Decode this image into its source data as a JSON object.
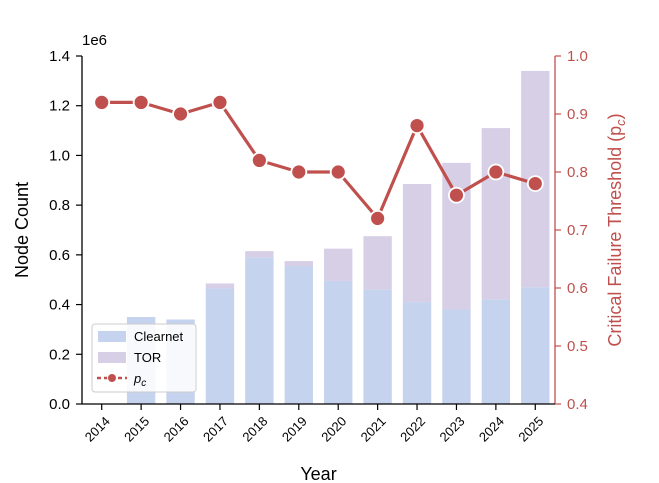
{
  "chart_data": {
    "type": "bar+line",
    "categories": [
      "2014",
      "2015",
      "2016",
      "2017",
      "2018",
      "2019",
      "2020",
      "2021",
      "2022",
      "2023",
      "2024",
      "2025"
    ],
    "series": [
      {
        "name": "Clearnet",
        "type": "bar",
        "axis": "left",
        "values": [
          0,
          350000,
          340000,
          465000,
          590000,
          555000,
          495000,
          460000,
          410000,
          380000,
          420000,
          470000
        ],
        "color": "#c5d3ee"
      },
      {
        "name": "TOR",
        "type": "bar",
        "axis": "left",
        "stacked": true,
        "values": [
          0,
          0,
          0,
          20000,
          25000,
          20000,
          130000,
          215000,
          475000,
          590000,
          690000,
          870000
        ],
        "color": "#d7cfe6"
      },
      {
        "name": "p_c",
        "type": "line",
        "axis": "right",
        "values": [
          0.92,
          0.92,
          0.9,
          0.92,
          0.82,
          0.8,
          0.8,
          0.72,
          0.88,
          0.76,
          0.8,
          0.78
        ],
        "color": "#c0504d"
      }
    ],
    "xlabel": "Year",
    "ylabel": "Node Count",
    "ylabel_right": "Critical Failure Threshold (p",
    "ylabel_right_sub": "c",
    "ylabel_right_close": ")",
    "ylim": [
      0,
      1400000
    ],
    "ylim_right": [
      0.4,
      1.0
    ],
    "y_scale_label": "1e6",
    "yticks": [
      "0.0",
      "0.2",
      "0.4",
      "0.6",
      "0.8",
      "1.0",
      "1.2",
      "1.4"
    ],
    "yticks_right": [
      "0.4",
      "0.5",
      "0.6",
      "0.7",
      "0.8",
      "0.9",
      "1.0"
    ],
    "legend": {
      "position": "lower-left",
      "entries": [
        "Clearnet",
        "TOR",
        "p_c"
      ],
      "pc_main": "p",
      "pc_sub": "c"
    }
  }
}
